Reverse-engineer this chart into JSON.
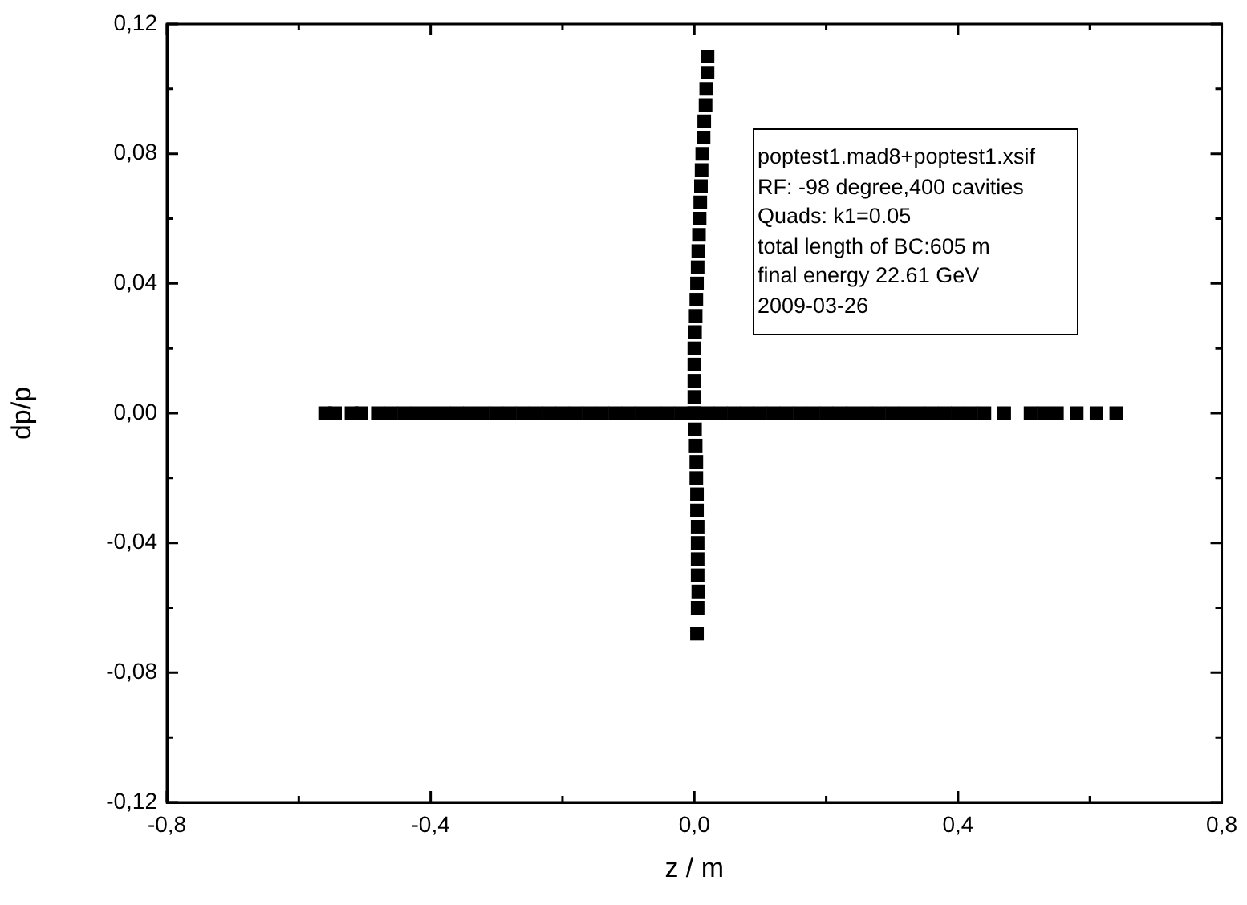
{
  "chart_data": {
    "type": "scatter",
    "xlabel": "z / m",
    "ylabel": "dp/p",
    "marker": "square",
    "annotations": [
      "poptest1.mad8+poptest1.xsif",
      "RF: -98 degree,400 cavities",
      "Quads: k1=0.05",
      "total length of BC:605 m",
      "final energy 22.61 GeV",
      "2009-03-26"
    ],
    "xlim": [
      -0.8,
      0.8
    ],
    "xticks": [
      {
        "value": -0.8,
        "label": "-0,8"
      },
      {
        "value": -0.6,
        "label": null
      },
      {
        "value": -0.4,
        "label": "-0,4"
      },
      {
        "value": -0.2,
        "label": null
      },
      {
        "value": 0,
        "label": "0,0"
      },
      {
        "value": 0.2,
        "label": null
      },
      {
        "value": 0.4,
        "label": "0,4"
      },
      {
        "value": 0.6,
        "label": null
      },
      {
        "value": 0.8,
        "label": "0,8"
      }
    ],
    "ylim": [
      -0.12,
      0.12
    ],
    "yticks": [
      {
        "value": -0.12,
        "label": "-0,12"
      },
      {
        "value": -0.1,
        "label": null
      },
      {
        "value": -0.08,
        "label": "-0,08"
      },
      {
        "value": -0.06,
        "label": null
      },
      {
        "value": -0.04,
        "label": "-0,04"
      },
      {
        "value": -0.02,
        "label": null
      },
      {
        "value": 0,
        "label": "0,00"
      },
      {
        "value": 0.02,
        "label": null
      },
      {
        "value": 0.04,
        "label": "0,04"
      },
      {
        "value": 0.06,
        "label": null
      },
      {
        "value": 0.08,
        "label": "0,08"
      },
      {
        "value": 0.1,
        "label": null
      },
      {
        "value": 0.12,
        "label": "0,12"
      }
    ],
    "series": [
      {
        "color": "#000000",
        "x": [
          -0.56,
          -0.545,
          -0.52,
          -0.505,
          -0.48,
          -0.46,
          -0.44,
          -0.42,
          -0.4,
          -0.38,
          -0.36,
          -0.34,
          -0.32,
          -0.3,
          -0.28,
          -0.26,
          -0.24,
          -0.22,
          -0.2,
          -0.18,
          -0.16,
          -0.14,
          -0.12,
          -0.1,
          -0.08,
          -0.06,
          -0.04,
          -0.02,
          0,
          0.02,
          0.04,
          0.06,
          0.08,
          0.1,
          0.12,
          0.14,
          0.16,
          0.18,
          0.2,
          0.22,
          0.24,
          0.26,
          0.28,
          0.3,
          0.32,
          0.34,
          0.36,
          0.38,
          0.4,
          0.42,
          0.44,
          0.47,
          0.51,
          0.53,
          0.55,
          0.58,
          0.61,
          0.64
        ],
        "values": [
          0,
          0,
          0,
          0,
          0,
          0,
          0,
          0,
          0,
          0,
          0,
          0,
          0,
          0,
          0,
          0,
          0,
          0,
          0,
          0,
          0,
          0,
          0,
          0,
          0,
          0,
          0,
          0,
          0,
          0,
          0,
          0,
          0,
          0,
          0,
          0,
          0,
          0,
          0,
          0,
          0,
          0,
          0,
          0,
          0,
          0,
          0,
          0,
          0,
          0,
          0,
          0,
          0,
          0,
          0,
          0,
          0,
          0
        ]
      },
      {
        "color": "#000000",
        "x": [
          0.02,
          0.02,
          0.018,
          0.017,
          0.015,
          0.014,
          0.012,
          0.011,
          0.01,
          0.009,
          0.008,
          0.007,
          0.006,
          0.005,
          0.004,
          0.003,
          0.002,
          0.001,
          0,
          0,
          0,
          0,
          0,
          0.001,
          0.002,
          0.003,
          0.003,
          0.004,
          0.004,
          0.005,
          0.005,
          0.005,
          0.005,
          0.006,
          0.005,
          0.004
        ],
        "values": [
          0.11,
          0.105,
          0.1,
          0.095,
          0.09,
          0.085,
          0.08,
          0.075,
          0.07,
          0.065,
          0.06,
          0.055,
          0.05,
          0.045,
          0.04,
          0.035,
          0.03,
          0.025,
          0.02,
          0.015,
          0.01,
          0.005,
          0,
          -0.005,
          -0.01,
          -0.015,
          -0.02,
          -0.025,
          -0.03,
          -0.035,
          -0.04,
          -0.045,
          -0.05,
          -0.055,
          -0.06,
          -0.068
        ]
      }
    ]
  }
}
